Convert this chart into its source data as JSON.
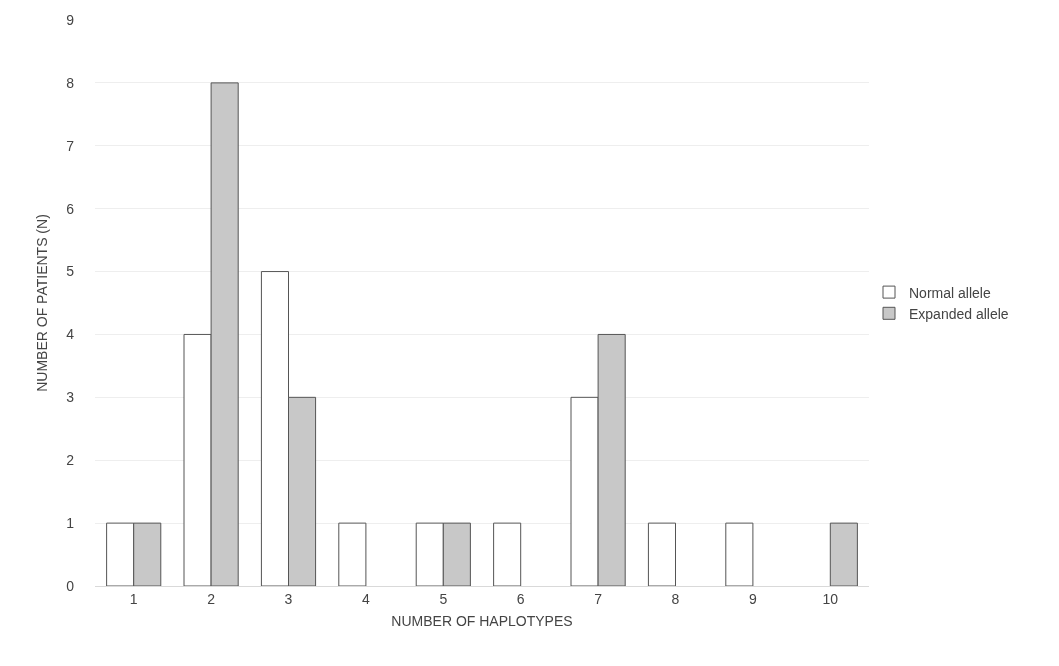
{
  "chart_data": {
    "type": "bar",
    "xlabel": "NUMBER OF HAPLOTYPES",
    "ylabel": "NUMBER OF PATIENTS (N)",
    "categories": [
      "1",
      "2",
      "3",
      "4",
      "5",
      "6",
      "7",
      "8",
      "9",
      "10"
    ],
    "series": [
      {
        "name": "Normal allele",
        "color": "#ffffff",
        "values": [
          1,
          4,
          5,
          1,
          1,
          1,
          3,
          1,
          1,
          null
        ]
      },
      {
        "name": "Expanded allele",
        "color": "#c8c8c8",
        "values": [
          1,
          8,
          3,
          null,
          1,
          null,
          4,
          null,
          null,
          1
        ]
      }
    ],
    "ylim": [
      0,
      9
    ],
    "yticks": [
      0,
      1,
      2,
      3,
      4,
      5,
      6,
      7,
      8,
      9
    ],
    "grid": "y",
    "legend": "right"
  }
}
